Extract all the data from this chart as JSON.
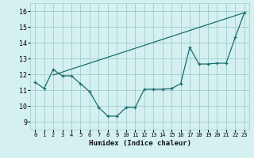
{
  "title": "",
  "xlabel": "Humidex (Indice chaleur)",
  "background_color": "#d4f0f0",
  "grid_color": "#a0cccc",
  "line_color": "#1a6e6e",
  "xlim": [
    -0.5,
    23.5
  ],
  "ylim": [
    8.5,
    16.5
  ],
  "yticks": [
    9,
    10,
    11,
    12,
    13,
    14,
    15,
    16
  ],
  "xticks": [
    0,
    1,
    2,
    3,
    4,
    5,
    6,
    7,
    8,
    9,
    10,
    11,
    12,
    13,
    14,
    15,
    16,
    17,
    18,
    19,
    20,
    21,
    22,
    23
  ],
  "line1_x": [
    0,
    1,
    2,
    3,
    4,
    5,
    6,
    7,
    8,
    9,
    10,
    11,
    12,
    13,
    14,
    15,
    16,
    17,
    18,
    19,
    20,
    21,
    22,
    23
  ],
  "line1_y": [
    11.5,
    11.1,
    12.3,
    11.9,
    11.9,
    11.4,
    10.9,
    9.9,
    9.35,
    9.35,
    9.9,
    9.9,
    11.05,
    11.05,
    11.05,
    11.1,
    11.4,
    13.7,
    12.65,
    12.65,
    12.7,
    12.7,
    14.35,
    15.9
  ],
  "line2_x": [
    2,
    23
  ],
  "line2_y": [
    11.95,
    15.9
  ]
}
